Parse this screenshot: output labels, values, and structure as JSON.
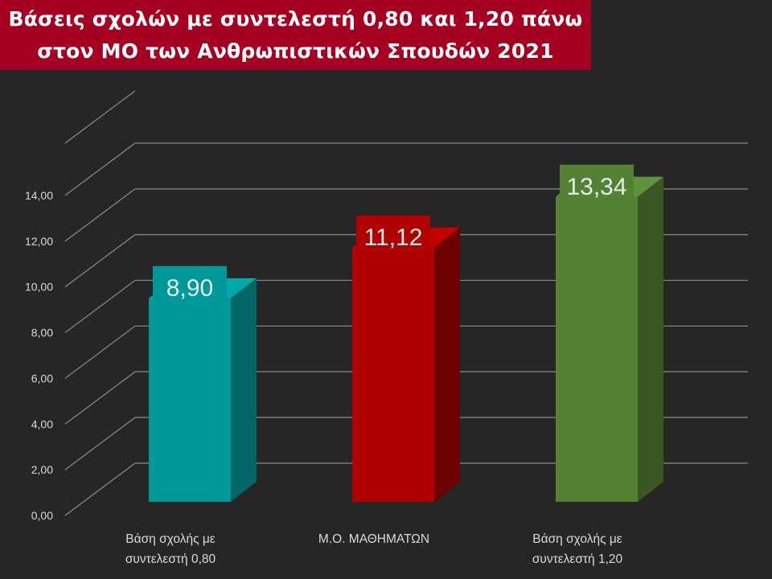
{
  "title": {
    "line1": "Βάσεις σχολών με συντελεστή 0,80 και 1,20 πάνω",
    "line2": "στον ΜΟ των Ανθρωπιστικών Σπουδών 2021"
  },
  "colors": {
    "background": "#262626",
    "title_bg": "#a50021",
    "gridline": "#8c8c8c",
    "text": "#d9d9d9"
  },
  "chart_data": {
    "type": "bar",
    "title": "Βάσεις σχολών με συντελεστή 0,80 και 1,20 πάνω στον ΜΟ των Ανθρωπιστικών Σπουδών 2021",
    "categories": [
      [
        "Βάση σχολής με",
        "συντελεστή 0,80"
      ],
      [
        "Μ.Ο. ΜΑΘΗΜΑΤΩΝ"
      ],
      [
        "Βάση σχολής με",
        "συντελεστή 1,20"
      ]
    ],
    "values": [
      8.9,
      11.12,
      13.34
    ],
    "data_labels": [
      "8,90",
      "11,12",
      "13,34"
    ],
    "bar_colors": [
      {
        "front": "#009999",
        "side": "#006666",
        "top": "#00a8a8"
      },
      {
        "front": "#b00000",
        "side": "#6e0000",
        "top": "#c20000"
      },
      {
        "front": "#548235",
        "side": "#385723",
        "top": "#5f923c"
      }
    ],
    "yticks": [
      "0,00",
      "2,00",
      "4,00",
      "6,00",
      "8,00",
      "10,00",
      "12,00",
      "14,00"
    ],
    "ylim": [
      0,
      14
    ],
    "grid": true,
    "legend": "none",
    "style": "3d-column"
  }
}
